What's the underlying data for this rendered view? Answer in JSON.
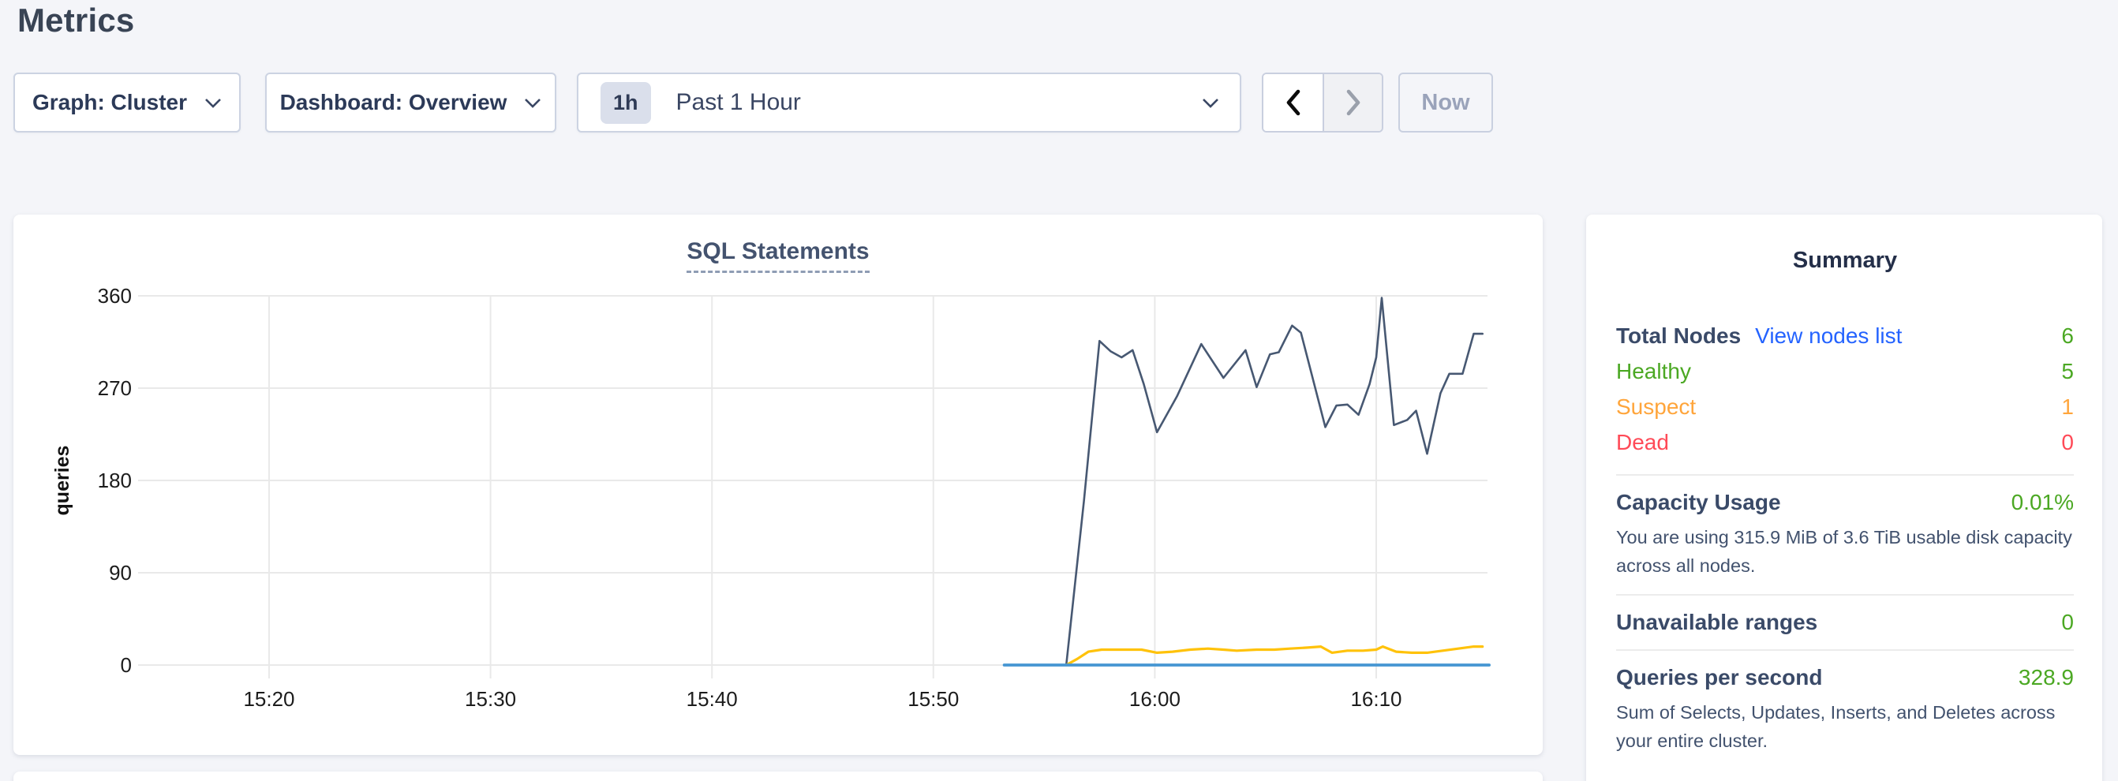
{
  "page": {
    "title": "Metrics"
  },
  "toolbar": {
    "graph_dropdown": {
      "label": "Graph: Cluster"
    },
    "dashboard_dropdown": {
      "label": "Dashboard: Overview"
    },
    "time_selector": {
      "badge": "1h",
      "label": "Past 1 Hour"
    },
    "now_button": "Now"
  },
  "chart_data": {
    "type": "line",
    "title": "SQL Statements",
    "ylabel": "queries",
    "ylim": [
      0,
      360
    ],
    "yticks": [
      0,
      90,
      180,
      270,
      360
    ],
    "x_domain": [
      "15:15",
      "16:15"
    ],
    "xticks": [
      {
        "minute": 5,
        "label": "15:20"
      },
      {
        "minute": 15,
        "label": "15:30"
      },
      {
        "minute": 25,
        "label": "15:40"
      },
      {
        "minute": 35,
        "label": "15:50"
      },
      {
        "minute": 45,
        "label": "16:00"
      },
      {
        "minute": 55,
        "label": "16:10"
      }
    ],
    "x_unit": "minutes after 15:15",
    "grid": true,
    "legend": "none",
    "series": [
      {
        "name": "navy-line",
        "color": "#475872",
        "points": [
          [
            41.0,
            0
          ],
          [
            41.8,
            160
          ],
          [
            42.5,
            316
          ],
          [
            43.0,
            306
          ],
          [
            43.5,
            300
          ],
          [
            44.0,
            307
          ],
          [
            44.5,
            274
          ],
          [
            45.1,
            227
          ],
          [
            46.0,
            262
          ],
          [
            47.1,
            313
          ],
          [
            48.1,
            280
          ],
          [
            49.1,
            307
          ],
          [
            49.6,
            271
          ],
          [
            50.2,
            303
          ],
          [
            50.6,
            305
          ],
          [
            51.2,
            331
          ],
          [
            51.6,
            324
          ],
          [
            52.7,
            232
          ],
          [
            53.2,
            253
          ],
          [
            53.7,
            254
          ],
          [
            54.2,
            244
          ],
          [
            54.7,
            274
          ],
          [
            55.0,
            300
          ],
          [
            55.25,
            358
          ],
          [
            55.8,
            234
          ],
          [
            56.4,
            239
          ],
          [
            56.8,
            248
          ],
          [
            57.3,
            206
          ],
          [
            57.9,
            265
          ],
          [
            58.3,
            284
          ],
          [
            58.9,
            284
          ],
          [
            59.4,
            323
          ],
          [
            59.8,
            323
          ]
        ]
      },
      {
        "name": "yellow-line",
        "color": "#ffc20a",
        "points": [
          [
            41.0,
            0
          ],
          [
            41.5,
            6
          ],
          [
            42.0,
            13
          ],
          [
            42.6,
            15
          ],
          [
            43.6,
            15
          ],
          [
            44.4,
            15
          ],
          [
            45.1,
            12
          ],
          [
            45.8,
            13
          ],
          [
            46.6,
            15
          ],
          [
            47.4,
            16
          ],
          [
            48.1,
            15
          ],
          [
            48.7,
            14
          ],
          [
            49.6,
            15
          ],
          [
            50.4,
            15
          ],
          [
            51.1,
            16
          ],
          [
            51.9,
            17
          ],
          [
            52.5,
            18
          ],
          [
            53.0,
            12
          ],
          [
            53.7,
            14
          ],
          [
            54.4,
            14
          ],
          [
            55.0,
            15
          ],
          [
            55.3,
            18
          ],
          [
            55.9,
            13
          ],
          [
            56.6,
            12
          ],
          [
            57.3,
            12
          ],
          [
            58.0,
            14
          ],
          [
            58.7,
            16
          ],
          [
            59.4,
            18
          ],
          [
            59.8,
            18
          ]
        ]
      },
      {
        "name": "blue-line",
        "color": "#4696d2",
        "points": [
          [
            38.2,
            0
          ],
          [
            60.1,
            0
          ]
        ]
      }
    ]
  },
  "summary": {
    "title": "Summary",
    "nodes": {
      "label": "Total Nodes",
      "link": "View nodes list",
      "value": "6",
      "rows": [
        {
          "label": "Healthy",
          "value": "5",
          "color": "#4ba823"
        },
        {
          "label": "Suspect",
          "value": "1",
          "color": "#ffa53b"
        },
        {
          "label": "Dead",
          "value": "0",
          "color": "#ff4a57"
        }
      ]
    },
    "capacity": {
      "label": "Capacity Usage",
      "value": "0.01%",
      "description": "You are using 315.9 MiB of 3.6 TiB usable disk capacity across all nodes."
    },
    "unavailable": {
      "label": "Unavailable ranges",
      "value": "0"
    },
    "qps": {
      "label": "Queries per second",
      "value": "328.9",
      "description": "Sum of Selects, Updates, Inserts, and Deletes across your entire cluster."
    }
  },
  "colors": {
    "healthy_green": "#4ba823",
    "suspect_orange": "#ffa53b",
    "dead_red": "#ff4a57",
    "link_blue": "#2463ff",
    "series_navy": "#475872",
    "series_yellow": "#ffc20a",
    "series_blue": "#4696d2"
  }
}
